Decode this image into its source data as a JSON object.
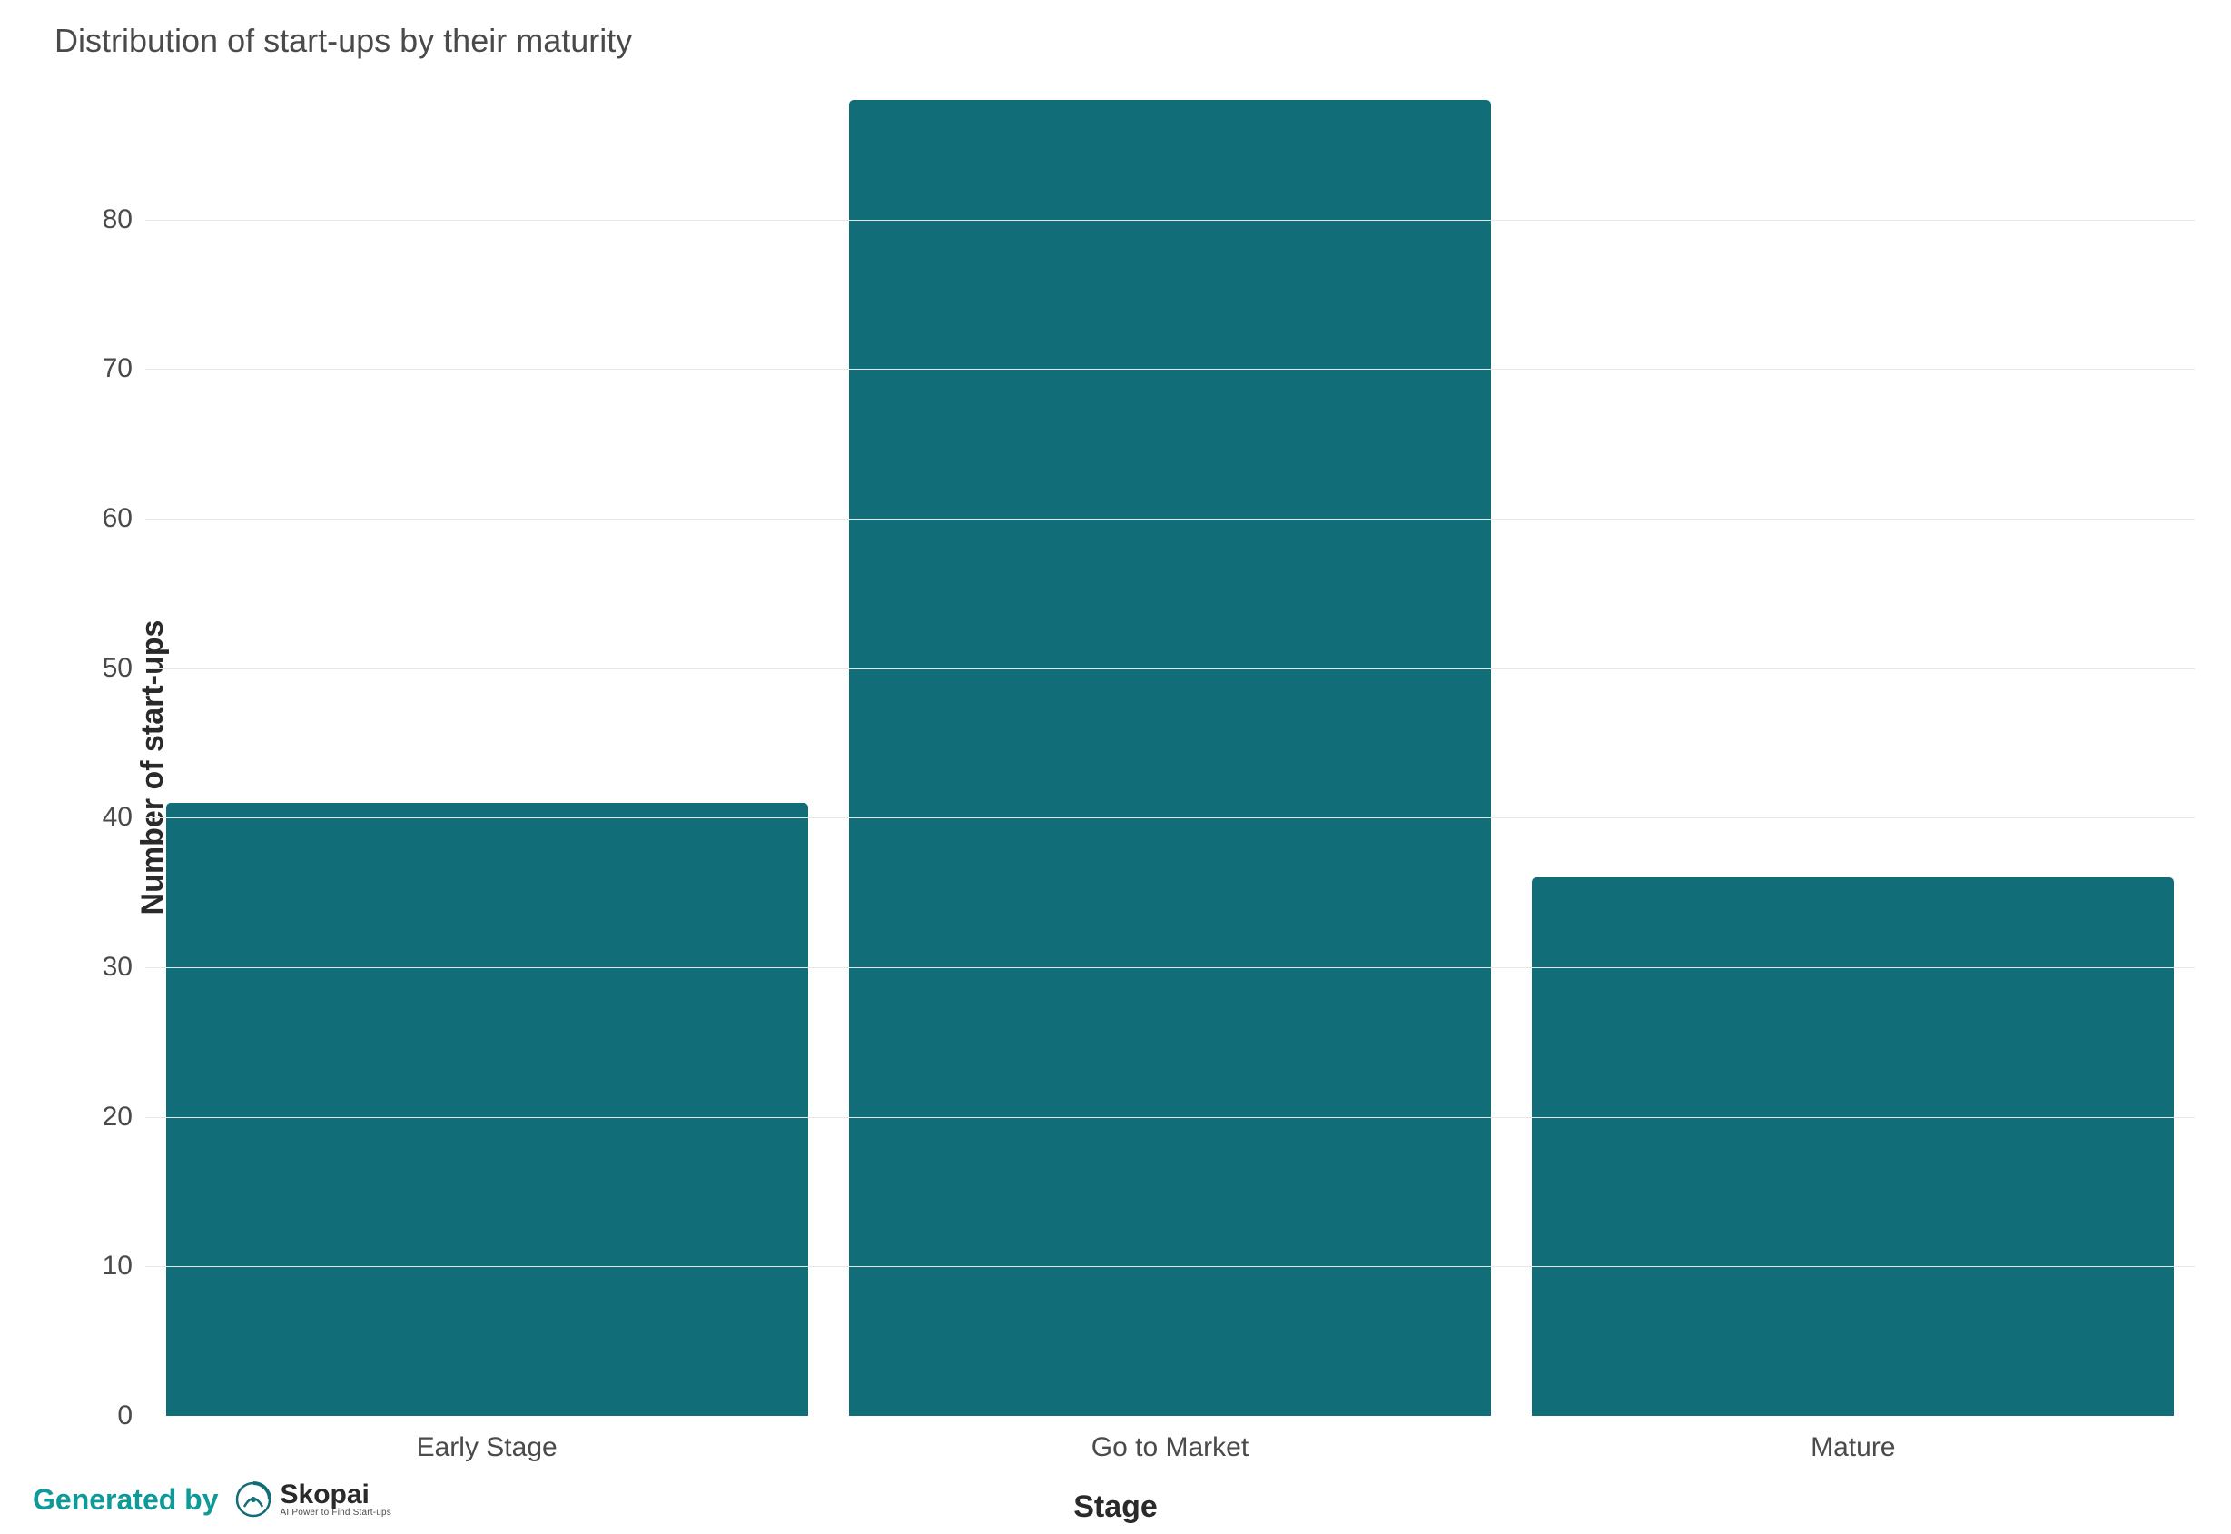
{
  "chart": {
    "type": "bar",
    "title": "Distribution of start-ups by their maturity",
    "title_fontsize": 36,
    "title_color": "#4a4a4a",
    "xlabel": "Stage",
    "ylabel": "Number of start-ups",
    "axis_label_fontsize": 34,
    "axis_label_fontweight": 700,
    "axis_label_color": "#2a2a2a",
    "tick_fontsize": 30,
    "tick_color": "#4a4a4a",
    "background_color": "#ffffff",
    "grid_color": "#e6e6e6",
    "ylim": [
      0,
      88
    ],
    "yticks": [
      0,
      10,
      20,
      30,
      40,
      50,
      60,
      70,
      80
    ],
    "categories": [
      "Early Stage",
      "Go to Market",
      "Mature"
    ],
    "values": [
      41,
      88,
      36
    ],
    "bar_colors": [
      "#116d78",
      "#116d78",
      "#116d78"
    ],
    "bar_width": 0.94,
    "bar_border_radius_top": 5
  },
  "attribution": {
    "text": "Generated by",
    "text_color": "#0f9a99",
    "logo_name": "Skopai",
    "logo_tagline": "AI Power to Find Start-ups",
    "logo_mark_color": "#116d78"
  }
}
